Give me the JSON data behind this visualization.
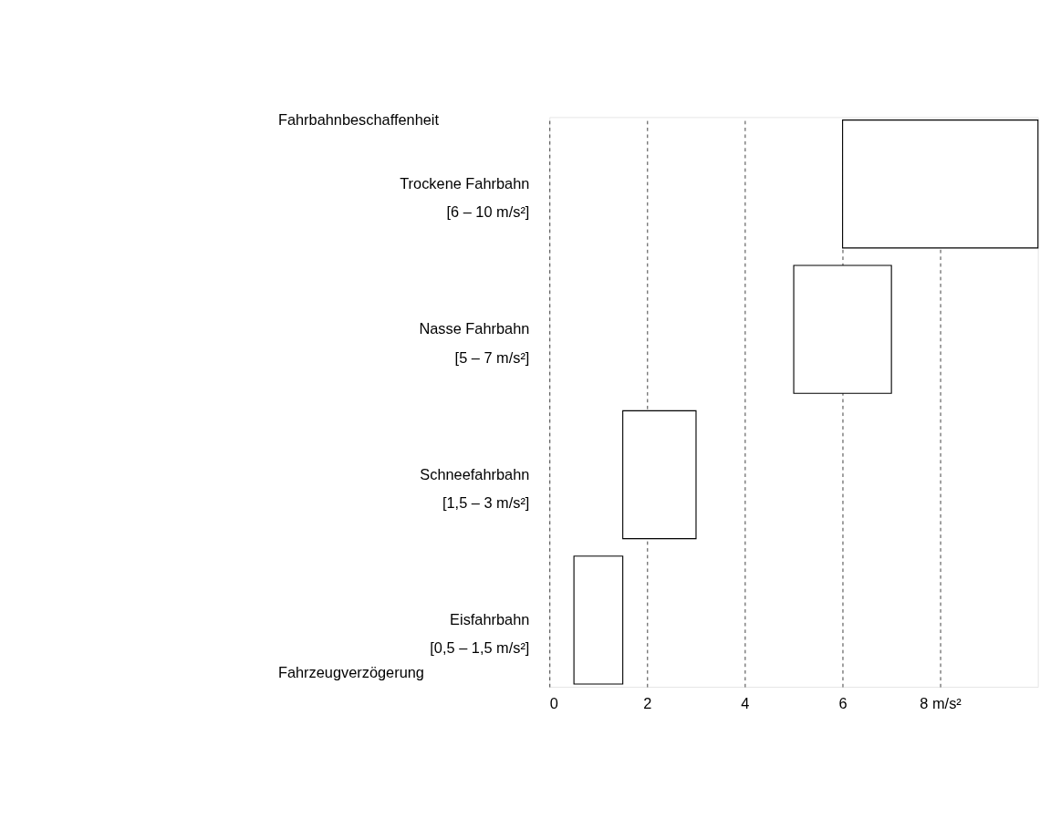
{
  "chart_data": {
    "type": "bar",
    "orientation": "horizontal",
    "annotations": [
      "Fahrbahnbeschaffenheit",
      "Fahrzeugverzögerung"
    ],
    "categories": [
      "Trockene Fahrbahn\n[6 – 10 m/s²]",
      "Nasse Fahrbahn\n[5 – 7 m/s²]",
      "Schneefahrbahn\n[1,5 – 3 m/s²]",
      "Eisfahrbahn\n[0,5 – 1,5 m/s²]"
    ],
    "base": [
      6,
      5,
      1.5,
      0.5
    ],
    "values": [
      4,
      2,
      1.5,
      1
    ],
    "color": "#ffffff",
    "xlim": [
      0,
      10
    ],
    "xticks": [
      0,
      2,
      4,
      6,
      {
        "value": 8,
        "label": "8  m/s²"
      }
    ],
    "grid": "x"
  }
}
